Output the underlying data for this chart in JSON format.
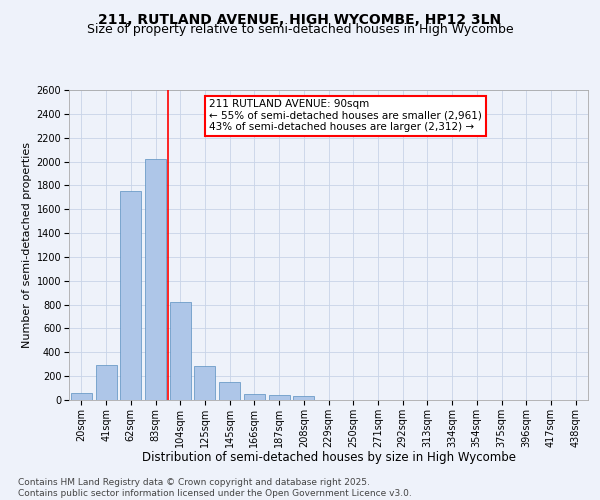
{
  "title": "211, RUTLAND AVENUE, HIGH WYCOMBE, HP12 3LN",
  "subtitle": "Size of property relative to semi-detached houses in High Wycombe",
  "xlabel": "Distribution of semi-detached houses by size in High Wycombe",
  "ylabel": "Number of semi-detached properties",
  "categories": [
    "20sqm",
    "41sqm",
    "62sqm",
    "83sqm",
    "104sqm",
    "125sqm",
    "145sqm",
    "166sqm",
    "187sqm",
    "208sqm",
    "229sqm",
    "250sqm",
    "271sqm",
    "292sqm",
    "313sqm",
    "334sqm",
    "354sqm",
    "375sqm",
    "396sqm",
    "417sqm",
    "438sqm"
  ],
  "values": [
    60,
    295,
    1755,
    2020,
    820,
    285,
    155,
    50,
    45,
    35,
    0,
    0,
    0,
    0,
    0,
    0,
    0,
    0,
    0,
    0,
    0
  ],
  "bar_color": "#aec6e8",
  "bar_edge_color": "#5a8fc0",
  "grid_color": "#c8d4e8",
  "background_color": "#eef2fa",
  "vline_color": "red",
  "annotation_text": "211 RUTLAND AVENUE: 90sqm\n← 55% of semi-detached houses are smaller (2,961)\n43% of semi-detached houses are larger (2,312) →",
  "annotation_box_color": "white",
  "annotation_box_edge": "red",
  "footer": "Contains HM Land Registry data © Crown copyright and database right 2025.\nContains public sector information licensed under the Open Government Licence v3.0.",
  "ylim": [
    0,
    2600
  ],
  "yticks": [
    0,
    200,
    400,
    600,
    800,
    1000,
    1200,
    1400,
    1600,
    1800,
    2000,
    2200,
    2400,
    2600
  ],
  "title_fontsize": 10,
  "subtitle_fontsize": 9,
  "xlabel_fontsize": 8.5,
  "ylabel_fontsize": 8,
  "tick_fontsize": 7,
  "footer_fontsize": 6.5,
  "annot_fontsize": 7.5
}
